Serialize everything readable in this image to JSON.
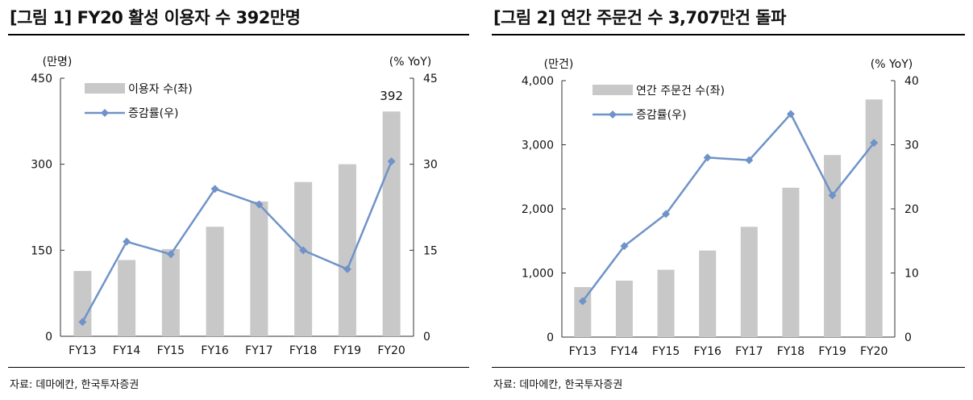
{
  "charts": [
    {
      "title": "[그림 1] FY20 활성 이용자 수 392만명",
      "source": "자료: 데마에칸, 한국투자증권",
      "chart_data": {
        "type": "bar",
        "title": "[그림 1] FY20 활성 이용자 수 392만명",
        "categories": [
          "FY13",
          "FY14",
          "FY15",
          "FY16",
          "FY17",
          "FY18",
          "FY19",
          "FY20"
        ],
        "series": [
          {
            "name": "이용자 수(좌)",
            "type": "bar",
            "axis": "left",
            "color": "#c8c8c8",
            "values": [
              114,
              133,
              152,
              191,
              235,
              269,
              300,
              392
            ]
          },
          {
            "name": "증감률(우)",
            "type": "line",
            "axis": "right",
            "color": "#6f93c8",
            "marker": "diamond",
            "values": [
              2.5,
              16.5,
              14.3,
              25.7,
              23.0,
              15.0,
              11.7,
              30.5
            ]
          }
        ],
        "y_left": {
          "unit": "(만명)",
          "ticks": [
            "0",
            "150",
            "300",
            "450"
          ],
          "ylim": [
            0,
            450
          ]
        },
        "y_right": {
          "unit": "(% YoY)",
          "ticks": [
            "0",
            "15",
            "30",
            "45"
          ],
          "ylim": [
            0,
            45
          ]
        },
        "data_labels": [
          {
            "category": "FY20",
            "text": "392"
          }
        ],
        "legend": "top-left",
        "grid": false
      }
    },
    {
      "title": "[그림 2] 연간 주문건 수 3,707만건 돌파",
      "source": "자료: 데마에칸, 한국투자증권",
      "chart_data": {
        "type": "bar",
        "title": "[그림 2] 연간 주문건 수 3,707만건 돌파",
        "categories": [
          "FY13",
          "FY14",
          "FY15",
          "FY16",
          "FY17",
          "FY18",
          "FY19",
          "FY20"
        ],
        "series": [
          {
            "name": "연간 주문건 수(좌)",
            "type": "bar",
            "axis": "left",
            "color": "#c8c8c8",
            "values": [
              780,
              880,
              1050,
              1350,
              1720,
              2330,
              2840,
              3707
            ]
          },
          {
            "name": "증감률(우)",
            "type": "line",
            "axis": "right",
            "color": "#6f93c8",
            "marker": "diamond",
            "values": [
              5.6,
              14.2,
              19.2,
              28.0,
              27.6,
              34.8,
              22.1,
              30.3
            ]
          }
        ],
        "y_left": {
          "unit": "(만건)",
          "ticks": [
            "0",
            "1,000",
            "2,000",
            "3,000",
            "4,000"
          ],
          "ylim": [
            0,
            4000
          ]
        },
        "y_right": {
          "unit": "(% YoY)",
          "ticks": [
            "0",
            "10",
            "20",
            "30",
            "40"
          ],
          "ylim": [
            0,
            40
          ]
        },
        "data_labels": [],
        "legend": "top-left",
        "grid": false
      }
    }
  ]
}
